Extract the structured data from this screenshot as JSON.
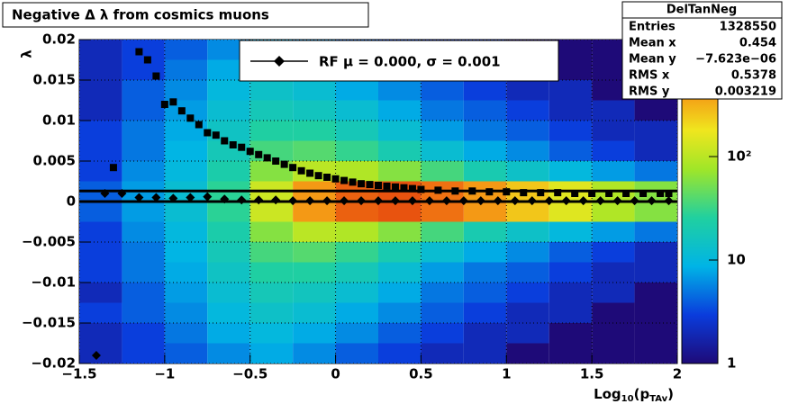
{
  "chart_data": {
    "type": "heatmap",
    "title": "Negative Δ λ from cosmics muons",
    "y_label": "λ",
    "x_label": [
      "Log",
      "10",
      "(p",
      "TAv",
      ")"
    ],
    "xlim": [
      -1.5,
      2
    ],
    "xticks": [
      {
        "value": -1.5,
        "label": "−1.5"
      },
      {
        "value": -1,
        "label": "−1"
      },
      {
        "value": -0.5,
        "label": "−0.5"
      },
      0,
      0.5,
      1,
      1.5,
      2
    ],
    "ylim": [
      -0.02,
      0.02
    ],
    "yticks": [
      {
        "value": -0.02,
        "label": "−0.02"
      },
      {
        "value": -0.015,
        "label": "−0.015"
      },
      {
        "value": -0.01,
        "label": "−0.01"
      },
      {
        "value": -0.005,
        "label": "−0.005"
      },
      0,
      0.005,
      0.01,
      0.015,
      0.02
    ],
    "grid": true,
    "log_z": true,
    "zlim": [
      1,
      1350
    ],
    "zticks": [
      1,
      10,
      {
        "value": 100,
        "label": "10²"
      }
    ],
    "x_bins": [
      -1.5,
      -1.25,
      -1,
      -0.75,
      -0.5,
      -0.25,
      0,
      0.25,
      0.5,
      0.75,
      1,
      1.25,
      1.5,
      1.75,
      2
    ],
    "y_bins": [
      -0.02,
      -0.0175,
      -0.015,
      -0.0125,
      -0.01,
      -0.0075,
      -0.005,
      -0.0025,
      0,
      0.0025,
      0.005,
      0.0075,
      0.01,
      0.0125,
      0.015,
      0.0175,
      0.02
    ],
    "z": [
      [
        2,
        2,
        3,
        2,
        3,
        3,
        3,
        4,
        4,
        3,
        3,
        3,
        2,
        2,
        2,
        2
      ],
      [
        3,
        3,
        4,
        4,
        5,
        5,
        6,
        7,
        7,
        6,
        5,
        5,
        4,
        4,
        3,
        3
      ],
      [
        4,
        5,
        6,
        7,
        8,
        9,
        10,
        12,
        12,
        10,
        9,
        8,
        7,
        6,
        5,
        4
      ],
      [
        6,
        8,
        10,
        12,
        15,
        18,
        22,
        28,
        28,
        22,
        18,
        15,
        12,
        10,
        8,
        6
      ],
      [
        8,
        10,
        14,
        18,
        25,
        35,
        60,
        120,
        120,
        60,
        35,
        25,
        18,
        14,
        10,
        8
      ],
      [
        6,
        8,
        12,
        16,
        25,
        40,
        100,
        400,
        400,
        100,
        40,
        25,
        16,
        12,
        8,
        6
      ],
      [
        4,
        6,
        8,
        12,
        18,
        30,
        90,
        700,
        700,
        90,
        30,
        18,
        12,
        8,
        6,
        4
      ],
      [
        3,
        4,
        6,
        8,
        12,
        20,
        60,
        800,
        800,
        60,
        20,
        12,
        8,
        6,
        4,
        3
      ],
      [
        2,
        3,
        4,
        5,
        7,
        12,
        35,
        600,
        600,
        35,
        12,
        7,
        5,
        4,
        3,
        2
      ],
      [
        2,
        2,
        3,
        4,
        5,
        8,
        20,
        400,
        400,
        20,
        8,
        5,
        4,
        3,
        2,
        2
      ],
      [
        1,
        2,
        2,
        3,
        4,
        6,
        14,
        250,
        250,
        14,
        6,
        4,
        3,
        2,
        2,
        1
      ],
      [
        1,
        1,
        2,
        2,
        3,
        4,
        10,
        150,
        150,
        10,
        4,
        3,
        2,
        2,
        1,
        1
      ],
      [
        1,
        1,
        1,
        2,
        2,
        3,
        7,
        90,
        90,
        7,
        3,
        2,
        2,
        1,
        1,
        1
      ],
      [
        1,
        1,
        1,
        1,
        2,
        2,
        5,
        60,
        60,
        5,
        2,
        2,
        1,
        1,
        1,
        1
      ]
    ],
    "series": [
      {
        "name": "squares",
        "marker": "square",
        "color": "#000000",
        "x": [
          -1.3,
          -1.15,
          -1.1,
          -1.05,
          -1.0,
          -0.95,
          -0.9,
          -0.85,
          -0.8,
          -0.75,
          -0.7,
          -0.65,
          -0.6,
          -0.55,
          -0.5,
          -0.45,
          -0.4,
          -0.35,
          -0.3,
          -0.25,
          -0.2,
          -0.15,
          -0.1,
          -0.05,
          0,
          0.05,
          0.1,
          0.15,
          0.2,
          0.25,
          0.3,
          0.35,
          0.4,
          0.45,
          0.5,
          0.6,
          0.7,
          0.8,
          0.9,
          1.0,
          1.1,
          1.2,
          1.3,
          1.4,
          1.5,
          1.6,
          1.7,
          1.8,
          1.9,
          1.95
        ],
        "values": [
          0.0042,
          0.0185,
          0.0175,
          0.0155,
          0.012,
          0.0123,
          0.0112,
          0.0103,
          0.0095,
          0.0085,
          0.0082,
          0.0075,
          0.007,
          0.0067,
          0.0062,
          0.0058,
          0.0054,
          0.005,
          0.0046,
          0.0042,
          0.0038,
          0.0035,
          0.0032,
          0.003,
          0.0028,
          0.0026,
          0.0024,
          0.0022,
          0.0021,
          0.002,
          0.0019,
          0.0018,
          0.0017,
          0.0016,
          0.0015,
          0.0014,
          0.0013,
          0.0013,
          0.0012,
          0.0012,
          0.0011,
          0.0011,
          0.0011,
          0.001,
          0.001,
          0.001,
          0.001,
          0.001,
          0.001,
          0.001
        ]
      },
      {
        "name": "RF",
        "marker": "diamond",
        "color": "#000000",
        "x": [
          -1.4,
          -1.35,
          -1.25,
          -1.15,
          -1.05,
          -0.95,
          -0.85,
          -0.75,
          -0.65,
          -0.55,
          -0.45,
          -0.35,
          -0.25,
          -0.15,
          -0.05,
          0.05,
          0.15,
          0.25,
          0.35,
          0.45,
          0.55,
          0.65,
          0.75,
          0.85,
          0.95,
          1.05,
          1.15,
          1.25,
          1.35,
          1.45,
          1.55,
          1.65,
          1.75,
          1.85,
          1.95
        ],
        "values": [
          -0.019,
          0.001,
          0.001,
          0.0005,
          0.0005,
          0.0004,
          0.0005,
          0.0006,
          0.0003,
          0.0002,
          0.0002,
          0.0002,
          0.0001,
          0.0001,
          0.0001,
          0.0001,
          0.0001,
          0.0001,
          0.0001,
          0.0001,
          0.0001,
          0.0001,
          0.0001,
          0.0001,
          0.0001,
          0.0001,
          0.0001,
          0.0001,
          0.0001,
          0.0001,
          0.0001,
          0.0001,
          0.0001,
          0.0001,
          0.0001
        ]
      }
    ],
    "hlines": [
      0,
      0.0013
    ],
    "legend": "RF μ =  0.000, σ =   0.001",
    "stats": {
      "name": "DelTanNeg",
      "rows": [
        [
          "Entries",
          "1328550"
        ],
        [
          "Mean x",
          "0.454"
        ],
        [
          "Mean y",
          "−7.623e−06"
        ],
        [
          "RMS x",
          "0.5378"
        ],
        [
          "RMS y",
          "0.003219"
        ]
      ]
    }
  }
}
